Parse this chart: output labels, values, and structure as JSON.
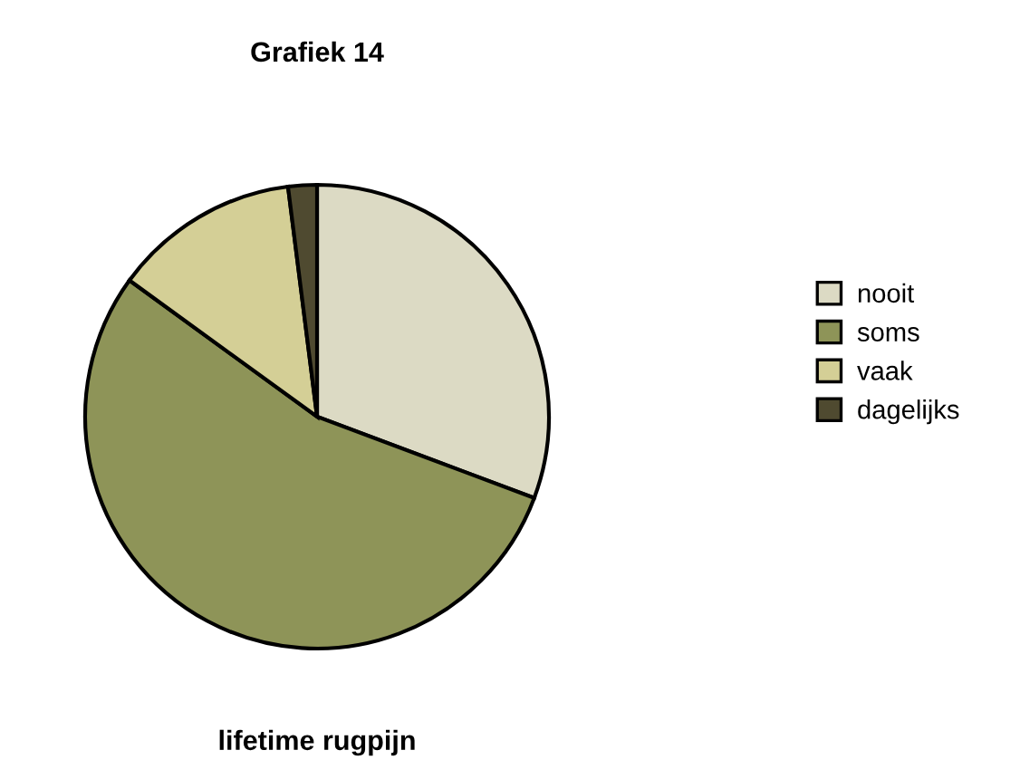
{
  "chart_data": {
    "type": "pie",
    "title": "Grafiek 14",
    "xlabel": "lifetime rugpijn",
    "categories": [
      "nooit",
      "soms",
      "vaak",
      "dagelijks"
    ],
    "values": [
      30.7,
      54.3,
      13.0,
      2.0
    ],
    "colors": [
      "#dcdac4",
      "#8e9458",
      "#d4cf96",
      "#4f4a30"
    ],
    "legend": "right"
  }
}
